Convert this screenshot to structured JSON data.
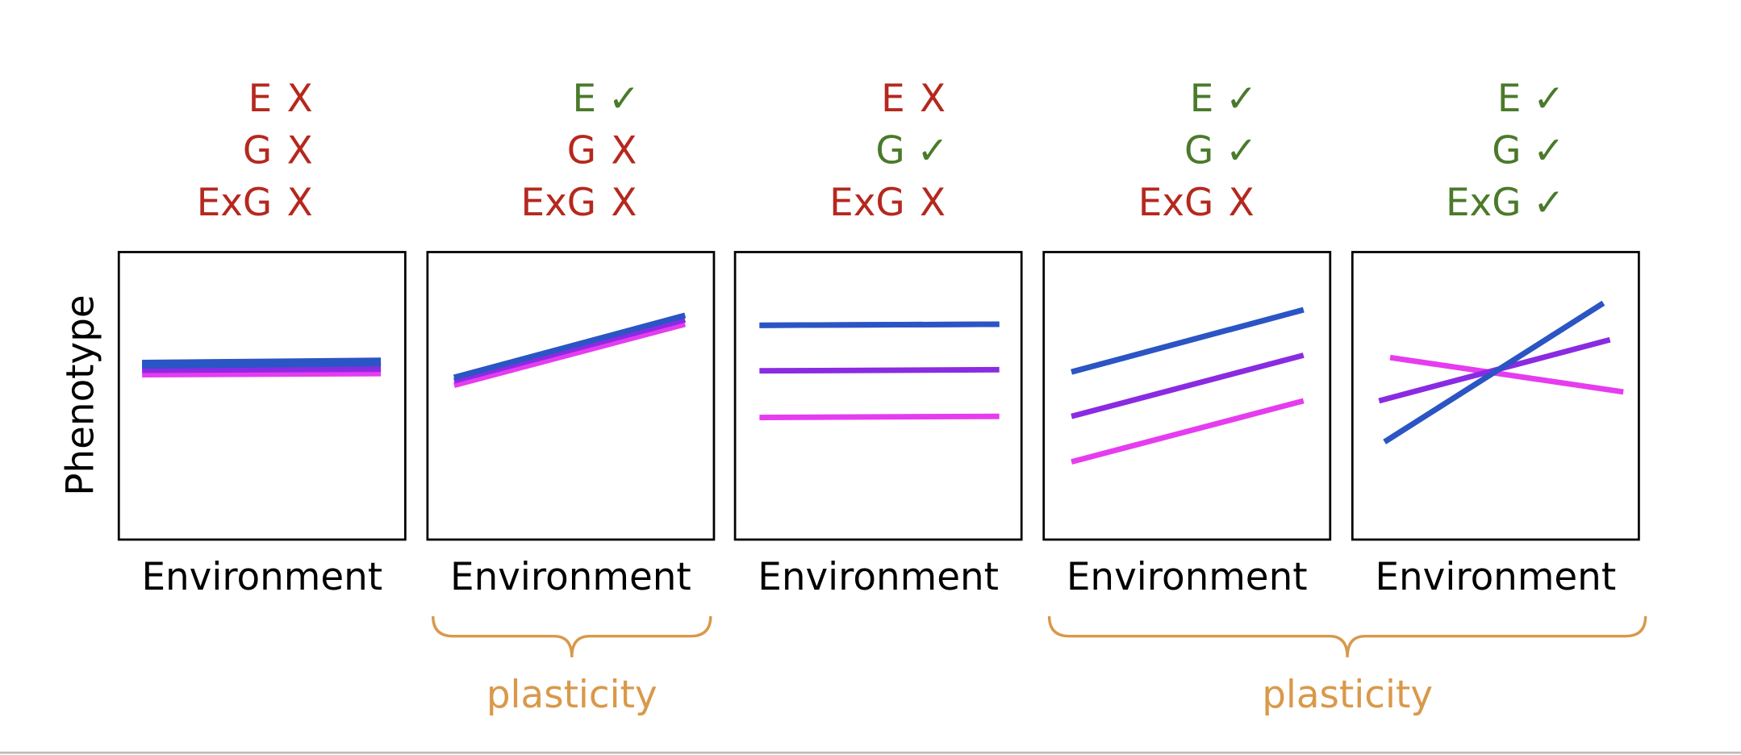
{
  "y_label": "Phenotype",
  "panels": [
    {
      "rows": [
        {
          "label": "E",
          "mark": "X",
          "color": "#b5281e"
        },
        {
          "label": "G",
          "mark": "X",
          "color": "#b5281e"
        },
        {
          "label": "ExG",
          "mark": "X",
          "color": "#b5281e"
        }
      ],
      "x_label": "Environment"
    },
    {
      "rows": [
        {
          "label": "E",
          "mark": "✓",
          "color": "#4a7a2a"
        },
        {
          "label": "G",
          "mark": "X",
          "color": "#b5281e"
        },
        {
          "label": "ExG",
          "mark": "X",
          "color": "#b5281e"
        }
      ],
      "x_label": "Environment"
    },
    {
      "rows": [
        {
          "label": "E",
          "mark": "X",
          "color": "#b5281e"
        },
        {
          "label": "G",
          "mark": "✓",
          "color": "#4a7a2a"
        },
        {
          "label": "ExG",
          "mark": "X",
          "color": "#b5281e"
        }
      ],
      "x_label": "Environment"
    },
    {
      "rows": [
        {
          "label": "E",
          "mark": "✓",
          "color": "#4a7a2a"
        },
        {
          "label": "G",
          "mark": "✓",
          "color": "#4a7a2a"
        },
        {
          "label": "ExG",
          "mark": "X",
          "color": "#b5281e"
        }
      ],
      "x_label": "Environment"
    },
    {
      "rows": [
        {
          "label": "E",
          "mark": "✓",
          "color": "#4a7a2a"
        },
        {
          "label": "G",
          "mark": "✓",
          "color": "#4a7a2a"
        },
        {
          "label": "ExG",
          "mark": "✓",
          "color": "#4a7a2a"
        }
      ],
      "x_label": "Environment"
    }
  ],
  "braces": [
    {
      "label": "plasticity"
    },
    {
      "label": "plasticity"
    }
  ]
}
